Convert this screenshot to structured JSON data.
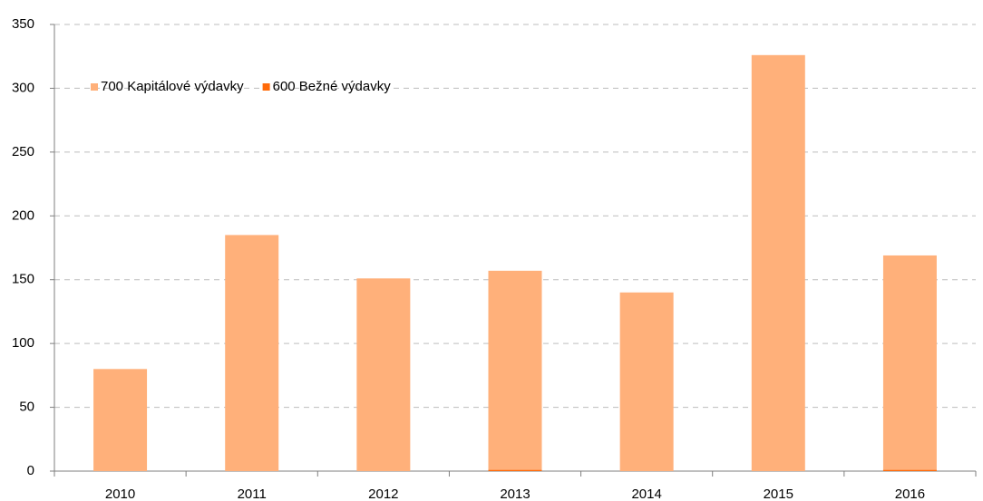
{
  "chart_data": {
    "type": "stacked_bar",
    "categories": [
      "2010",
      "2011",
      "2012",
      "2013",
      "2014",
      "2015",
      "2016"
    ],
    "series": [
      {
        "name": "700 Kapitálové výdavky",
        "color": "#ffb07a",
        "values": [
          80,
          185,
          151,
          156,
          140,
          326,
          168
        ]
      },
      {
        "name": "600 Bežné výdavky",
        "color": "#ff6a0a",
        "values": [
          0,
          0,
          0,
          1,
          0,
          0,
          1
        ]
      }
    ],
    "ylim": [
      0,
      350
    ],
    "yticks": [
      0,
      50,
      100,
      150,
      200,
      250,
      300,
      350
    ],
    "grid": true,
    "legend": "top-left"
  }
}
